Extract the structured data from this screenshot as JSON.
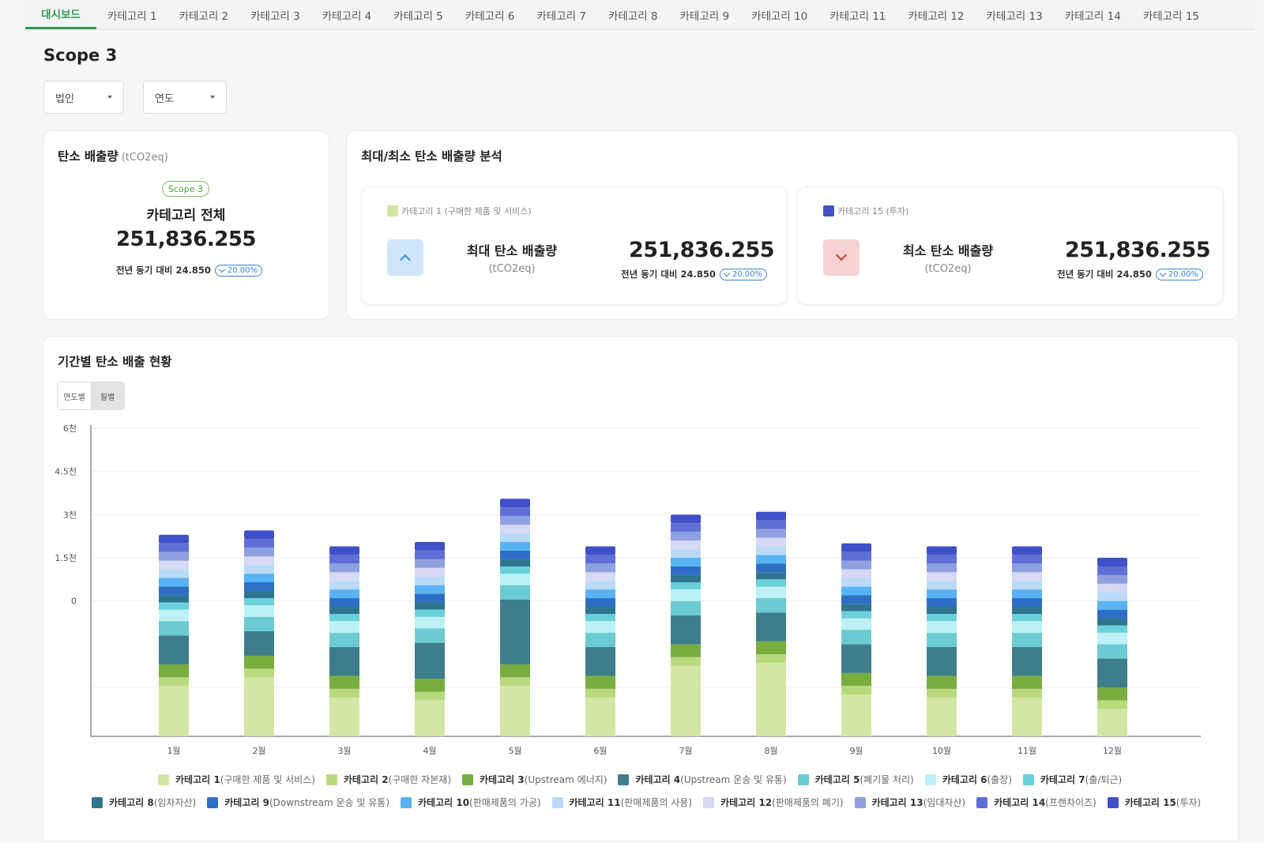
{
  "tabs": [
    {
      "label": "대시보드",
      "active": true
    },
    {
      "label": "카테고리 1"
    },
    {
      "label": "카테고리 2"
    },
    {
      "label": "카테고리 3"
    },
    {
      "label": "카테고리 4"
    },
    {
      "label": "카테고리 5"
    },
    {
      "label": "카테고리 6"
    },
    {
      "label": "카테고리 7"
    },
    {
      "label": "카테고리 8"
    },
    {
      "label": "카테고리 9"
    },
    {
      "label": "카테고리 10"
    },
    {
      "label": "카테고리 11"
    },
    {
      "label": "카테고리 12"
    },
    {
      "label": "카테고리 13"
    },
    {
      "label": "카테고리 14"
    },
    {
      "label": "카테고리 15"
    }
  ],
  "page_title": "Scope 3",
  "filters": {
    "corp": "법인",
    "year": "연도"
  },
  "total_card": {
    "title": "탄소 배출량",
    "unit": "(tCO2eq)",
    "badge": "Scope 3",
    "label": "카테고리 전체",
    "value": "251,836.255",
    "yoy_text": "전년 동기 대비 24.850",
    "yoy_change": "20.00%"
  },
  "analysis_card": {
    "title": "최대/최소 탄소 배출량 분석",
    "max": {
      "legend": "카테고리 1 (구매한 제품 및 서비스)",
      "legend_color": "#d3e6a6",
      "label": "최대 탄소 배출량",
      "unit": "(tCO2eq)",
      "value": "251,836.255",
      "yoy_text": "전년 동기 대비 24.850",
      "yoy_change": "20.00%"
    },
    "min": {
      "legend": "카테고리 15 (투자)",
      "legend_color": "#4353c4",
      "label": "최소 탄소 배출량",
      "unit": "(tCO2eq)",
      "value": "251,836.255",
      "yoy_text": "전년 동기 대비 24.850",
      "yoy_change": "20.00%"
    }
  },
  "period_card": {
    "title": "기간별 탄소 배출 현황",
    "toggle": [
      "연도별",
      "월별"
    ],
    "toggle_selected": "월별"
  },
  "colors": {
    "cat1": "#d3e6a6",
    "cat2": "#b9d97f",
    "cat3": "#79ad3f",
    "cat4": "#3e7d8c",
    "cat5": "#6ccad3",
    "cat6": "#bdf1f5",
    "cat7": "#6ad0da",
    "cat8": "#2f7590",
    "cat9": "#2e6fc6",
    "cat10": "#58b3f2",
    "cat11": "#bbdaf7",
    "cat12": "#d6d8f4",
    "cat13": "#8ea0e0",
    "cat14": "#5f6fd6",
    "cat15": "#4050c8",
    "arrow_up_bg": "#cfe6fb",
    "arrow_up": "#3d8fdc",
    "arrow_down_bg": "#f6d2d2",
    "arrow_down": "#d23a3a"
  },
  "chart_data": {
    "type": "bar",
    "stacked": true,
    "categories": [
      "1월",
      "2월",
      "3월",
      "4월",
      "5월",
      "6월",
      "7월",
      "8월",
      "9월",
      "10월",
      "11월",
      "12월"
    ],
    "y_ticks": [
      "6천",
      "4.5천",
      "3천",
      "1.5천",
      "0"
    ],
    "ylim": [
      -4.7,
      6
    ],
    "grid": true,
    "legend_position": "bottom",
    "series": [
      {
        "name": "카테고리 1",
        "desc": "(구매한 제품 및 서비스)",
        "color_key": "cat1",
        "values": [
          -2.95,
          -2.65,
          -3.35,
          -3.45,
          -2.95,
          -3.35,
          -2.25,
          -2.15,
          -3.25,
          -3.35,
          -3.35,
          -3.75
        ]
      },
      {
        "name": "카테고리 2",
        "desc": "(구매한 자본재)",
        "color_key": "cat2",
        "values": [
          0.3,
          0.3,
          0.3,
          0.3,
          0.3,
          0.3,
          0.3,
          0.3,
          0.3,
          0.3,
          0.3,
          0.3
        ]
      },
      {
        "name": "카테고리 3",
        "desc": "(Upstream 에너지)",
        "color_key": "cat3",
        "values": [
          0.45,
          0.45,
          0.45,
          0.45,
          0.45,
          0.45,
          0.45,
          0.45,
          0.45,
          0.45,
          0.45,
          0.45
        ]
      },
      {
        "name": "카테고리 4",
        "desc": "(Upstream 운송 및 유통)",
        "color_key": "cat4",
        "values": [
          1.0,
          0.85,
          1.0,
          1.25,
          2.25,
          1.0,
          1.0,
          1.0,
          1.0,
          1.0,
          1.0,
          1.0
        ]
      },
      {
        "name": "카테고리 5",
        "desc": "(폐기물 처리)",
        "color_key": "cat5",
        "values": [
          0.5,
          0.5,
          0.5,
          0.5,
          0.5,
          0.5,
          0.5,
          0.5,
          0.5,
          0.5,
          0.5,
          0.5
        ]
      },
      {
        "name": "카테고리 6",
        "desc": "(출장)",
        "color_key": "cat6",
        "values": [
          0.4,
          0.4,
          0.4,
          0.4,
          0.4,
          0.4,
          0.4,
          0.4,
          0.4,
          0.4,
          0.4,
          0.4
        ]
      },
      {
        "name": "카테고리 7",
        "desc": "(출/퇴근)",
        "color_key": "cat7",
        "values": [
          0.25,
          0.25,
          0.25,
          0.25,
          0.25,
          0.25,
          0.25,
          0.25,
          0.25,
          0.25,
          0.25,
          0.25
        ]
      },
      {
        "name": "카테고리 8",
        "desc": "(임차자산)",
        "color_key": "cat8",
        "values": [
          0.25,
          0.25,
          0.25,
          0.25,
          0.25,
          0.25,
          0.25,
          0.25,
          0.25,
          0.25,
          0.25,
          0.25
        ]
      },
      {
        "name": "카테고리 9",
        "desc": "(Downstream 운송 및 유통)",
        "color_key": "cat9",
        "values": [
          0.3,
          0.3,
          0.3,
          0.3,
          0.3,
          0.3,
          0.3,
          0.3,
          0.3,
          0.3,
          0.3,
          0.3
        ]
      },
      {
        "name": "카테고리 10",
        "desc": "(판매제품의 가공)",
        "color_key": "cat10",
        "values": [
          0.3,
          0.3,
          0.3,
          0.3,
          0.3,
          0.3,
          0.3,
          0.3,
          0.3,
          0.3,
          0.3,
          0.3
        ]
      },
      {
        "name": "카테고리 11",
        "desc": "(판매제품의 사용)",
        "color_key": "cat11",
        "values": [
          0.3,
          0.3,
          0.3,
          0.3,
          0.3,
          0.3,
          0.3,
          0.3,
          0.3,
          0.3,
          0.3,
          0.3
        ]
      },
      {
        "name": "카테고리 12",
        "desc": "(판매제품의 폐기)",
        "color_key": "cat12",
        "values": [
          0.3,
          0.3,
          0.3,
          0.3,
          0.3,
          0.3,
          0.3,
          0.3,
          0.3,
          0.3,
          0.3,
          0.3
        ]
      },
      {
        "name": "카테고리 13",
        "desc": "(임대자산)",
        "color_key": "cat13",
        "values": [
          0.3,
          0.3,
          0.3,
          0.3,
          0.3,
          0.3,
          0.3,
          0.3,
          0.3,
          0.3,
          0.3,
          0.3
        ]
      },
      {
        "name": "카테고리 14",
        "desc": "(프랜차이즈)",
        "color_key": "cat14",
        "values": [
          0.3,
          0.3,
          0.3,
          0.3,
          0.3,
          0.3,
          0.3,
          0.3,
          0.3,
          0.3,
          0.3,
          0.3
        ]
      },
      {
        "name": "카테고리 15",
        "desc": "(투자)",
        "color_key": "cat15",
        "values": [
          0.3,
          0.3,
          0.3,
          0.3,
          0.3,
          0.3,
          0.3,
          0.3,
          0.3,
          0.3,
          0.3,
          0.3
        ]
      }
    ]
  }
}
